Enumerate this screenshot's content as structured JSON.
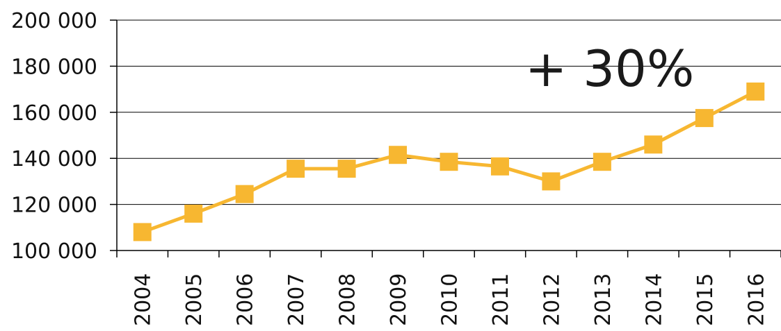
{
  "chart_data": {
    "type": "line",
    "title": "",
    "xlabel": "",
    "ylabel": "",
    "categories": [
      "2004",
      "2005",
      "2006",
      "2007",
      "2008",
      "2009",
      "2010",
      "2011",
      "2012",
      "2013",
      "2014",
      "2015",
      "2016"
    ],
    "series": [
      {
        "values": [
          108000,
          116000,
          124500,
          135500,
          135500,
          141500,
          138500,
          136500,
          130000,
          138500,
          146000,
          157500,
          169000
        ]
      }
    ],
    "ylim": [
      100000,
      200000
    ],
    "yticks": [
      100000,
      120000,
      140000,
      160000,
      180000,
      200000
    ],
    "ytick_labels": [
      "100 000",
      "120 000",
      "140 000",
      "160 000",
      "180 000",
      "200 000"
    ],
    "grid": "horizontal",
    "legend": "none",
    "annotation": "+ 30%",
    "colors": {
      "series": "#F7B731",
      "grid": "#000000",
      "text": "#111111"
    }
  }
}
